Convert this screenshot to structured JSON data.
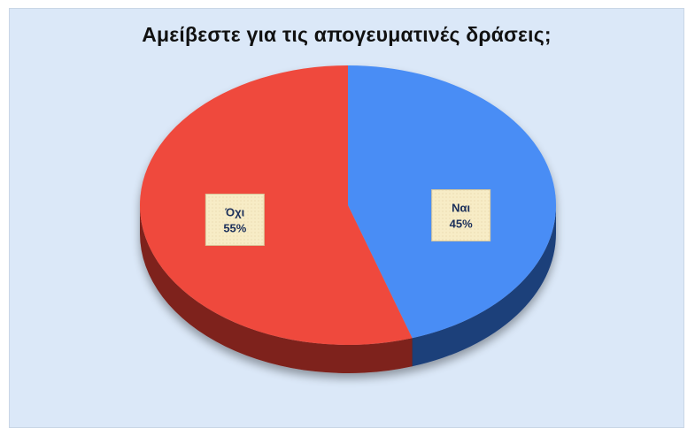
{
  "chart_data": {
    "type": "pie",
    "title": "Αμείβεστε για τις απογευματινές δράσεις;",
    "legend": "none",
    "slices": [
      {
        "label": "Ναι",
        "percent_label": "45%",
        "value": 45,
        "color": "#4a8df5",
        "side_color": "#1f3f7a"
      },
      {
        "label": "Όχι",
        "percent_label": "55%",
        "value": 55,
        "color": "#ef4a3c",
        "side_color": "#7e201a"
      }
    ],
    "label_style": {
      "box_fill": "#f7ecc6",
      "box_border": "#d8c79a",
      "text_color": "#1b2f5a"
    }
  }
}
